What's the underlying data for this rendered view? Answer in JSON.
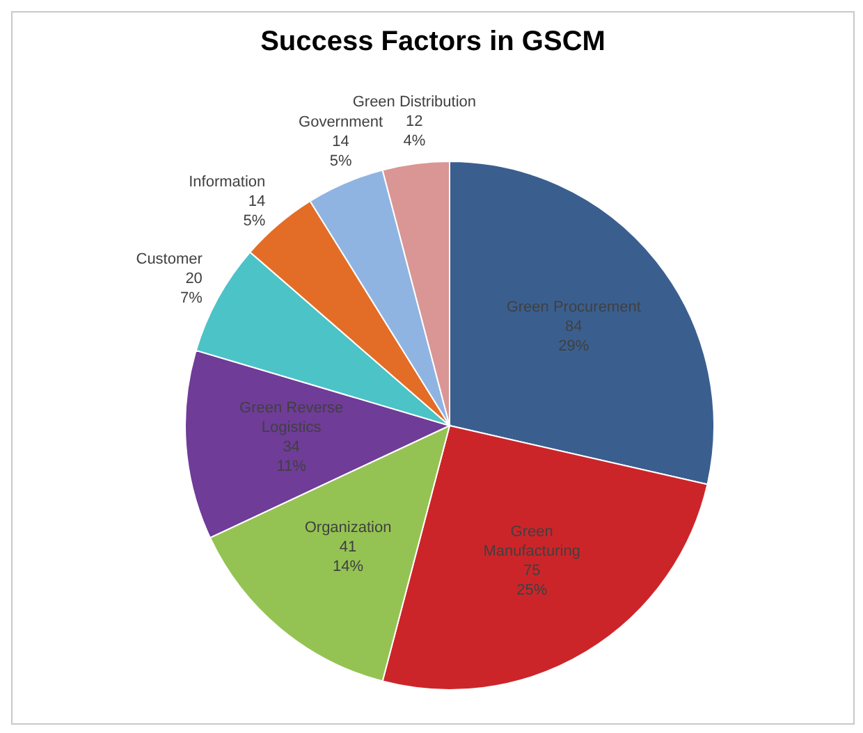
{
  "chart_data": {
    "type": "pie",
    "title": "Success Factors in GSCM",
    "categories": [
      "Green Procurement",
      "Green Manufacturing",
      "Organization",
      "Green Reverse Logistics",
      "Customer",
      "Information",
      "Government",
      "Green Distribution"
    ],
    "values": [
      84,
      75,
      41,
      34,
      20,
      14,
      14,
      12
    ],
    "value_labels": [
      "84\n29%",
      "75\n25%",
      "41\n14%",
      "34\n11%",
      "20\n7%",
      "14\n5%",
      "14\n5%",
      "12\n4%"
    ],
    "colors": [
      "#3a5f8f",
      "#cc2529",
      "#94c353",
      "#6f3c98",
      "#4bc3c7",
      "#e36d26",
      "#8fb4e2",
      "#d99694"
    ],
    "legend": false
  }
}
